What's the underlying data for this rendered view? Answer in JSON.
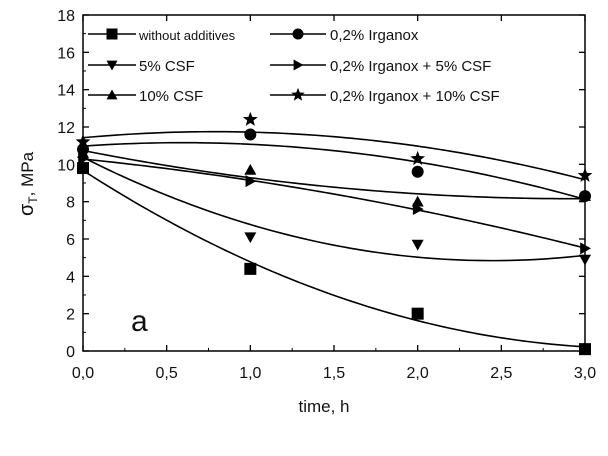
{
  "chart_data": {
    "type": "line",
    "title": "",
    "panel_label": "a",
    "xlabel": "time, h",
    "ylabel": "σ",
    "ylabel_sub": "T",
    "ylabel_unit": ", MPa",
    "xlim": [
      0,
      3
    ],
    "ylim": [
      0,
      18
    ],
    "x_ticks": [
      "0,0",
      "0,5",
      "1,0",
      "1,5",
      "2,0",
      "2,5",
      "3,0"
    ],
    "y_ticks": [
      "0",
      "2",
      "4",
      "6",
      "8",
      "10",
      "12",
      "14",
      "16",
      "18"
    ],
    "grid": false,
    "legend_position": "top",
    "series": [
      {
        "name": "without additives",
        "marker": "square",
        "x": [
          0,
          1,
          2,
          3
        ],
        "y": [
          9.8,
          4.4,
          2.0,
          0.1
        ]
      },
      {
        "name": "0,2% Irganox",
        "marker": "circle",
        "x": [
          0,
          1,
          2,
          3
        ],
        "y": [
          10.8,
          11.6,
          9.6,
          8.3
        ]
      },
      {
        "name": "5% CSF",
        "marker": "triangle-down",
        "x": [
          0,
          1,
          2,
          3
        ],
        "y": [
          10.6,
          6.1,
          5.7,
          4.9
        ]
      },
      {
        "name": "0,2% Irganox + 5% CSF",
        "marker": "triangle-right",
        "x": [
          0,
          1,
          2,
          3
        ],
        "y": [
          10.3,
          9.1,
          7.6,
          5.5
        ]
      },
      {
        "name": "10% CSF",
        "marker": "triangle-up",
        "x": [
          0,
          1,
          2,
          3
        ],
        "y": [
          10.6,
          9.7,
          8.0,
          8.3
        ]
      },
      {
        "name": "0,2% Irganox + 10% CSF",
        "marker": "star",
        "x": [
          0,
          1,
          2,
          3
        ],
        "y": [
          11.2,
          12.4,
          10.3,
          9.4
        ]
      }
    ]
  }
}
